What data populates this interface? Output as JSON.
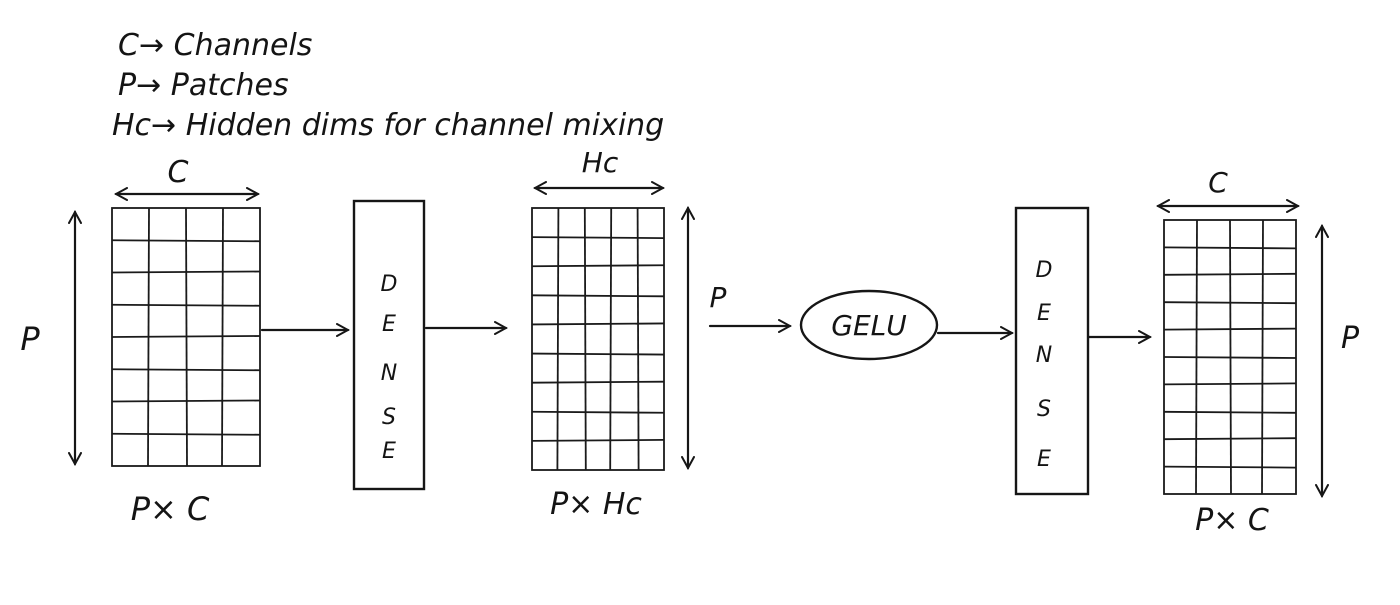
{
  "legend": {
    "line1": "C→ Channels",
    "line2": "P→ Patches",
    "line3": "Hc→ Hidden dims for channel mixing"
  },
  "input": {
    "dim_top": "C",
    "dim_side": "P",
    "caption": "P× C"
  },
  "dense1": {
    "letters": [
      "D",
      "E",
      "N",
      "S",
      "E"
    ]
  },
  "hidden": {
    "dim_top": "Hc",
    "dim_side": "P",
    "caption": "P× Hc"
  },
  "activation": {
    "label": "GELU"
  },
  "dense2": {
    "letters": [
      "D",
      "E",
      "N",
      "S",
      "E"
    ]
  },
  "output": {
    "dim_top": "C",
    "dim_side": "P",
    "caption": "P× C"
  },
  "colors": {
    "ink": "#161616",
    "paper": "#ffffff"
  }
}
